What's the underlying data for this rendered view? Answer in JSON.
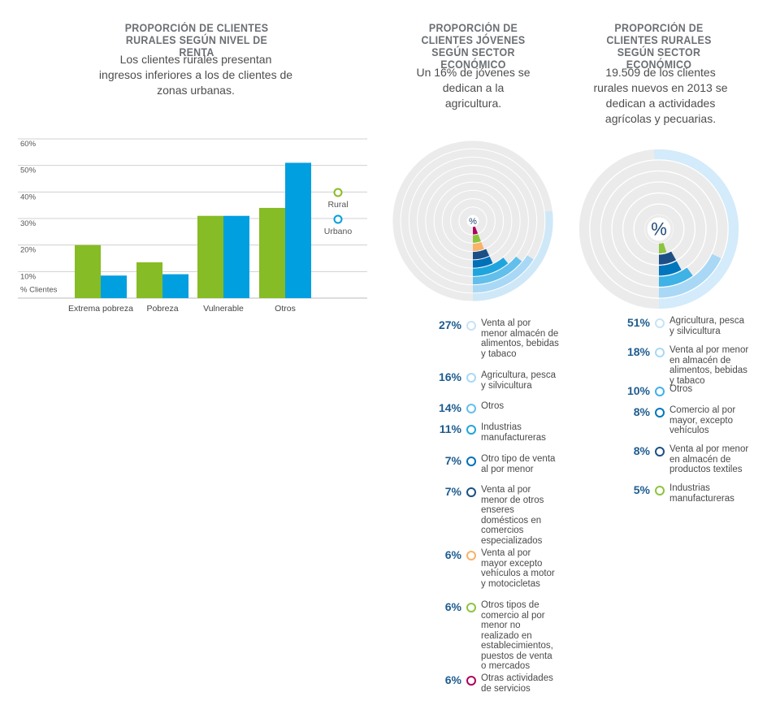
{
  "colors": {
    "rural": "#86bc25",
    "urbano": "#009fdf",
    "ring_grey": "#ebebeb",
    "ring_light": "#cfe8f8",
    "pct_text": "#1e5c8f"
  },
  "chart_data": [
    {
      "type": "bar",
      "title": "PROPORCIÓN DE CLIENTES RURALES SEGÚN NIVEL DE RENTA",
      "subtitle": "Los clientes rurales presentan ingresos inferiores a los de clientes de zonas urbanas.",
      "categories": [
        "Extrema pobreza",
        "Pobreza",
        "Vulnerable",
        "Otros"
      ],
      "series": [
        {
          "name": "Rural",
          "color": "#86bc25",
          "values": [
            20,
            13.5,
            31,
            34
          ]
        },
        {
          "name": "Urbano",
          "color": "#009fdf",
          "values": [
            8.5,
            9,
            31,
            51
          ]
        }
      ],
      "ylabel": "% Clientes",
      "ylim": [
        0,
        60
      ],
      "yticks": [
        "60%",
        "50%",
        "40%",
        "30%",
        "20%",
        "10%"
      ],
      "legend_position": "right",
      "grid": true
    },
    {
      "type": "pie",
      "variant": "radial-rings",
      "title": "PROPORCIÓN DE CLIENTES JÓVENES SEGÚN SECTOR ECONÓMICO",
      "subtitle": "Un 16% de jóvenes se dedican a la agricultura.",
      "center_label": "%",
      "items": [
        {
          "pct": "27%",
          "value": 27,
          "label": "Venta al por menor almacén de alimentos, bebidas y tabaco",
          "color": "#cfe8f8"
        },
        {
          "pct": "16%",
          "value": 16,
          "label": "Agricultura, pesca y silvicultura",
          "color": "#a8d8f5"
        },
        {
          "pct": "14%",
          "value": 14,
          "label": "Otros",
          "color": "#62bfeb"
        },
        {
          "pct": "11%",
          "value": 11,
          "label": "Industrias manufactureras",
          "color": "#1fa5de"
        },
        {
          "pct": "7%",
          "value": 7,
          "label": "Otro tipo de venta al por menor",
          "color": "#0071b8"
        },
        {
          "pct": "7%",
          "value": 7,
          "label": "Venta al por menor de otros enseres domésticos en comercios especializados",
          "color": "#1c4f86"
        },
        {
          "pct": "6%",
          "value": 6,
          "label": "Venta al por mayor excepto vehículos a motor y motocicletas",
          "color": "#f7b36a"
        },
        {
          "pct": "6%",
          "value": 6,
          "label": "Otros tipos de comercio al por menor no realizado en establecimientos, puestos de venta o mercados",
          "color": "#8cc43f"
        },
        {
          "pct": "6%",
          "value": 6,
          "label": "Otras actividades de servicios",
          "color": "#b0005e"
        }
      ]
    },
    {
      "type": "pie",
      "variant": "radial-rings",
      "title": "PROPORCIÓN DE CLIENTES RURALES SEGÚN SECTOR ECONÓMICO",
      "subtitle": "19.509 de los clientes rurales nuevos en 2013 se dedican a actividades agrícolas y pecuarias.",
      "center_label": "%",
      "items": [
        {
          "pct": "51%",
          "value": 51,
          "label": "Agricultura, pesca y silvicultura",
          "color": "#d3ebfa"
        },
        {
          "pct": "18%",
          "value": 18,
          "label": "Venta al por menor en almacén de alimentos, bebidas y tabaco",
          "color": "#a8d8f5"
        },
        {
          "pct": "10%",
          "value": 10,
          "label": "Otros",
          "color": "#3fb2e6"
        },
        {
          "pct": "8%",
          "value": 8,
          "label": "Comercio al por mayor, excepto vehículos",
          "color": "#0076bd"
        },
        {
          "pct": "8%",
          "value": 8,
          "label": "Venta al por menor en almacén de productos textiles",
          "color": "#1c4f86"
        },
        {
          "pct": "5%",
          "value": 5,
          "label": "Industrias manufactureras",
          "color": "#8cc43f"
        }
      ]
    }
  ]
}
